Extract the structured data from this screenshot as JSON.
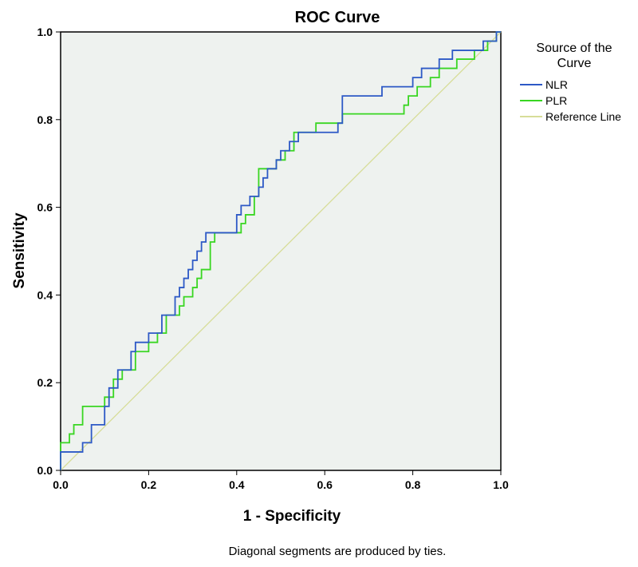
{
  "chart_data": {
    "type": "line",
    "title": "ROC Curve",
    "xlabel": "1 - Specificity",
    "ylabel": "Sensitivity",
    "xlim": [
      0,
      1
    ],
    "ylim": [
      0,
      1
    ],
    "x_ticks": [
      "0.0",
      "0.2",
      "0.4",
      "0.6",
      "0.8",
      "1.0"
    ],
    "y_ticks": [
      "0.0",
      "0.2",
      "0.4",
      "0.6",
      "0.8",
      "1.0"
    ],
    "grid": false,
    "plot_background": "#eef2ef",
    "legend": {
      "title": "Source of the Curve",
      "title_lines": [
        "Source of the",
        "Curve"
      ],
      "position": "right"
    },
    "footnote": "Diagonal segments are produced by ties.",
    "series": [
      {
        "name": "NLR",
        "color": "#2d59c6",
        "points": [
          [
            0.0,
            0.0
          ],
          [
            0.0,
            0.042
          ],
          [
            0.05,
            0.042
          ],
          [
            0.05,
            0.063
          ],
          [
            0.07,
            0.063
          ],
          [
            0.07,
            0.104
          ],
          [
            0.1,
            0.104
          ],
          [
            0.1,
            0.146
          ],
          [
            0.11,
            0.146
          ],
          [
            0.11,
            0.188
          ],
          [
            0.13,
            0.188
          ],
          [
            0.13,
            0.229
          ],
          [
            0.16,
            0.229
          ],
          [
            0.16,
            0.271
          ],
          [
            0.17,
            0.271
          ],
          [
            0.17,
            0.292
          ],
          [
            0.2,
            0.292
          ],
          [
            0.2,
            0.313
          ],
          [
            0.23,
            0.313
          ],
          [
            0.23,
            0.354
          ],
          [
            0.26,
            0.354
          ],
          [
            0.26,
            0.396
          ],
          [
            0.27,
            0.396
          ],
          [
            0.27,
            0.417
          ],
          [
            0.28,
            0.417
          ],
          [
            0.28,
            0.438
          ],
          [
            0.29,
            0.438
          ],
          [
            0.29,
            0.458
          ],
          [
            0.3,
            0.458
          ],
          [
            0.3,
            0.479
          ],
          [
            0.31,
            0.479
          ],
          [
            0.31,
            0.5
          ],
          [
            0.32,
            0.5
          ],
          [
            0.32,
            0.521
          ],
          [
            0.33,
            0.521
          ],
          [
            0.33,
            0.542
          ],
          [
            0.4,
            0.542
          ],
          [
            0.4,
            0.583
          ],
          [
            0.41,
            0.583
          ],
          [
            0.41,
            0.604
          ],
          [
            0.43,
            0.604
          ],
          [
            0.43,
            0.625
          ],
          [
            0.45,
            0.625
          ],
          [
            0.45,
            0.646
          ],
          [
            0.46,
            0.646
          ],
          [
            0.46,
            0.667
          ],
          [
            0.47,
            0.667
          ],
          [
            0.47,
            0.688
          ],
          [
            0.49,
            0.688
          ],
          [
            0.49,
            0.708
          ],
          [
            0.5,
            0.708
          ],
          [
            0.5,
            0.729
          ],
          [
            0.52,
            0.729
          ],
          [
            0.52,
            0.75
          ],
          [
            0.54,
            0.75
          ],
          [
            0.54,
            0.771
          ],
          [
            0.63,
            0.771
          ],
          [
            0.63,
            0.792
          ],
          [
            0.64,
            0.792
          ],
          [
            0.64,
            0.854
          ],
          [
            0.73,
            0.854
          ],
          [
            0.73,
            0.875
          ],
          [
            0.8,
            0.875
          ],
          [
            0.8,
            0.896
          ],
          [
            0.82,
            0.896
          ],
          [
            0.82,
            0.917
          ],
          [
            0.86,
            0.917
          ],
          [
            0.86,
            0.938
          ],
          [
            0.89,
            0.938
          ],
          [
            0.89,
            0.958
          ],
          [
            0.96,
            0.958
          ],
          [
            0.96,
            0.979
          ],
          [
            0.99,
            0.979
          ],
          [
            0.99,
            1.0
          ],
          [
            1.0,
            1.0
          ]
        ]
      },
      {
        "name": "PLR",
        "color": "#39d622",
        "points": [
          [
            0.0,
            0.0
          ],
          [
            0.0,
            0.063
          ],
          [
            0.02,
            0.063
          ],
          [
            0.02,
            0.083
          ],
          [
            0.03,
            0.083
          ],
          [
            0.03,
            0.104
          ],
          [
            0.05,
            0.104
          ],
          [
            0.05,
            0.146
          ],
          [
            0.1,
            0.146
          ],
          [
            0.1,
            0.167
          ],
          [
            0.12,
            0.167
          ],
          [
            0.12,
            0.208
          ],
          [
            0.14,
            0.208
          ],
          [
            0.14,
            0.229
          ],
          [
            0.17,
            0.229
          ],
          [
            0.17,
            0.271
          ],
          [
            0.2,
            0.271
          ],
          [
            0.2,
            0.292
          ],
          [
            0.22,
            0.292
          ],
          [
            0.22,
            0.313
          ],
          [
            0.24,
            0.313
          ],
          [
            0.24,
            0.354
          ],
          [
            0.27,
            0.354
          ],
          [
            0.27,
            0.375
          ],
          [
            0.28,
            0.375
          ],
          [
            0.28,
            0.396
          ],
          [
            0.3,
            0.396
          ],
          [
            0.3,
            0.417
          ],
          [
            0.31,
            0.417
          ],
          [
            0.31,
            0.438
          ],
          [
            0.32,
            0.438
          ],
          [
            0.32,
            0.458
          ],
          [
            0.34,
            0.458
          ],
          [
            0.34,
            0.521
          ],
          [
            0.35,
            0.521
          ],
          [
            0.35,
            0.542
          ],
          [
            0.41,
            0.542
          ],
          [
            0.41,
            0.563
          ],
          [
            0.42,
            0.563
          ],
          [
            0.42,
            0.583
          ],
          [
            0.44,
            0.583
          ],
          [
            0.44,
            0.625
          ],
          [
            0.45,
            0.625
          ],
          [
            0.45,
            0.688
          ],
          [
            0.49,
            0.688
          ],
          [
            0.49,
            0.708
          ],
          [
            0.51,
            0.708
          ],
          [
            0.51,
            0.729
          ],
          [
            0.53,
            0.729
          ],
          [
            0.53,
            0.771
          ],
          [
            0.58,
            0.771
          ],
          [
            0.58,
            0.792
          ],
          [
            0.64,
            0.792
          ],
          [
            0.64,
            0.813
          ],
          [
            0.78,
            0.813
          ],
          [
            0.78,
            0.833
          ],
          [
            0.79,
            0.833
          ],
          [
            0.79,
            0.854
          ],
          [
            0.81,
            0.854
          ],
          [
            0.81,
            0.875
          ],
          [
            0.84,
            0.875
          ],
          [
            0.84,
            0.896
          ],
          [
            0.86,
            0.896
          ],
          [
            0.86,
            0.917
          ],
          [
            0.9,
            0.917
          ],
          [
            0.9,
            0.938
          ],
          [
            0.94,
            0.938
          ],
          [
            0.94,
            0.958
          ],
          [
            0.97,
            0.958
          ],
          [
            0.97,
            0.979
          ],
          [
            0.99,
            0.979
          ],
          [
            0.99,
            1.0
          ],
          [
            1.0,
            1.0
          ]
        ]
      },
      {
        "name": "Reference Line",
        "color": "#d7dd99",
        "points": [
          [
            0.0,
            0.0
          ],
          [
            1.0,
            1.0
          ]
        ]
      }
    ]
  }
}
